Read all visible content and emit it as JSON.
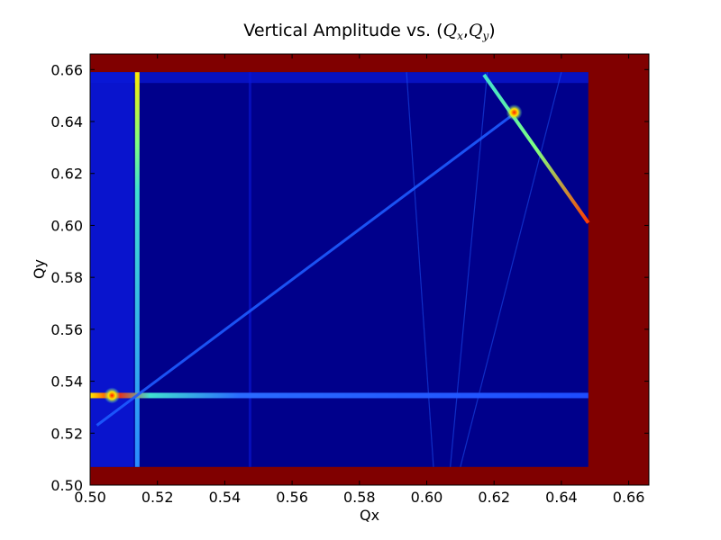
{
  "chart_data": {
    "type": "heatmap",
    "title": {
      "prefix": "Vertical Amplitude vs. ",
      "open": "(",
      "q1": "Q",
      "sub1": "x",
      "sep": ",",
      "q2": "Q",
      "sub2": "y",
      "close": ")"
    },
    "xlabel": "Qx",
    "ylabel": "Qy",
    "xlim": [
      0.5,
      0.666
    ],
    "ylim": [
      0.5,
      0.666
    ],
    "xticks": [
      "0.50",
      "0.52",
      "0.54",
      "0.56",
      "0.58",
      "0.60",
      "0.62",
      "0.64",
      "0.66"
    ],
    "yticks": [
      "0.50",
      "0.52",
      "0.54",
      "0.56",
      "0.58",
      "0.60",
      "0.62",
      "0.64",
      "0.66"
    ],
    "colormap": "jet",
    "colors": {
      "background_saturated": "#800000",
      "field": "#00008b",
      "field_bright": "#0a18d8",
      "resonance_line": "#1e5bff",
      "peak_cyan": "#40e0d0",
      "peak_yellow": "#ffe800",
      "peak_red": "#ff1a00"
    },
    "data_region": {
      "qx": [
        0.5,
        0.648
      ],
      "qy": [
        0.507,
        0.659
      ]
    },
    "features": [
      {
        "kind": "vertical-resonance",
        "qx": 0.514,
        "qy": [
          0.507,
          0.659
        ]
      },
      {
        "kind": "horizontal-resonance",
        "qy": 0.5345,
        "qx": [
          0.5,
          0.648
        ]
      },
      {
        "kind": "diagonal-resonance",
        "from": [
          0.502,
          0.523
        ],
        "to": [
          0.627,
          0.644
        ]
      },
      {
        "kind": "anti-diagonal-resonance",
        "from": [
          0.617,
          0.658
        ],
        "to": [
          0.648,
          0.601
        ]
      },
      {
        "kind": "hot-spot",
        "qx": 0.5065,
        "qy": 0.5345
      },
      {
        "kind": "hot-spot",
        "qx": 0.626,
        "qy": 0.6435
      }
    ]
  }
}
